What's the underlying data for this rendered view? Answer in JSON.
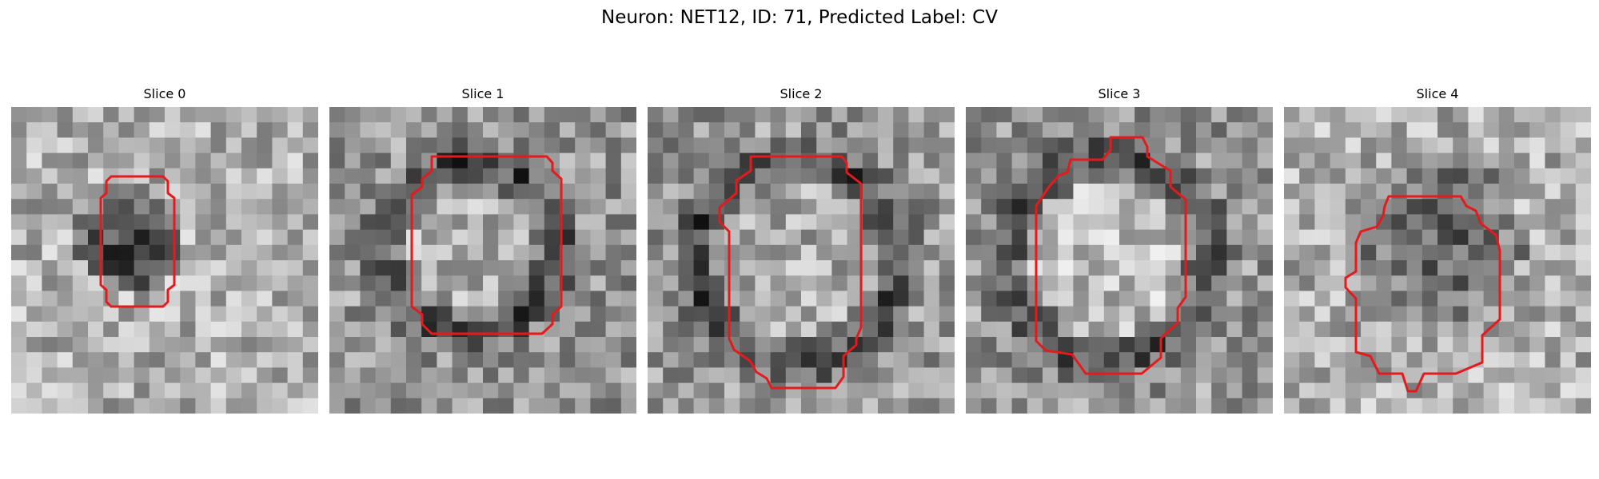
{
  "figure": {
    "title": "Neuron: NET12, ID: 71, Predicted Label: CV"
  },
  "panels": [
    {
      "title": "Slice 0"
    },
    {
      "title": "Slice 1"
    },
    {
      "title": "Slice 2"
    },
    {
      "title": "Slice 3"
    },
    {
      "title": "Slice 4"
    }
  ],
  "colors": {
    "contour": "#e41a1c",
    "background": "#ffffff"
  },
  "image": {
    "grid_cells": 20,
    "colormap": "grayscale"
  }
}
